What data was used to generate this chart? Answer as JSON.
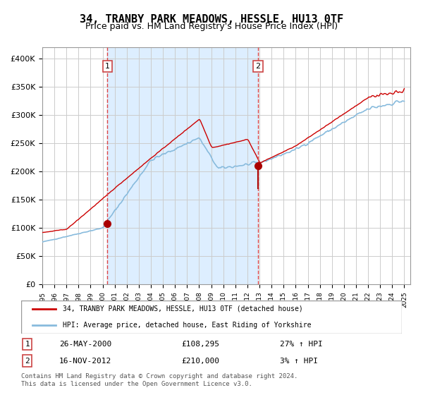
{
  "title": "34, TRANBY PARK MEADOWS, HESSLE, HU13 0TF",
  "subtitle": "Price paid vs. HM Land Registry's House Price Index (HPI)",
  "title_fontsize": 11,
  "subtitle_fontsize": 9,
  "background_color": "#ffffff",
  "plot_bg_color": "#ffffff",
  "shaded_region_color": "#ddeeff",
  "grid_color": "#cccccc",
  "y_ticks": [
    0,
    50000,
    100000,
    150000,
    200000,
    250000,
    300000,
    350000,
    400000
  ],
  "y_tick_labels": [
    "£0",
    "£50K",
    "£100K",
    "£150K",
    "£200K",
    "£250K",
    "£300K",
    "£350K",
    "£400K"
  ],
  "x_start_year": 1995,
  "x_end_year": 2025,
  "sale1_date": 2000.4,
  "sale1_price": 108295,
  "sale1_label": "1",
  "sale2_date": 2012.88,
  "sale2_price": 210000,
  "sale2_label": "2",
  "line_color_property": "#cc0000",
  "line_color_hpi": "#88bbdd",
  "dot_color": "#aa0000",
  "vline_color": "#dd4444",
  "legend_line1": "34, TRANBY PARK MEADOWS, HESSLE, HU13 0TF (detached house)",
  "legend_line2": "HPI: Average price, detached house, East Riding of Yorkshire",
  "table_row1": [
    "1",
    "26-MAY-2000",
    "£108,295",
    "27% ↑ HPI"
  ],
  "table_row2": [
    "2",
    "16-NOV-2012",
    "£210,000",
    "3% ↑ HPI"
  ],
  "footer_text": "Contains HM Land Registry data © Crown copyright and database right 2024.\nThis data is licensed under the Open Government Licence v3.0.",
  "ylim": [
    0,
    420000
  ]
}
